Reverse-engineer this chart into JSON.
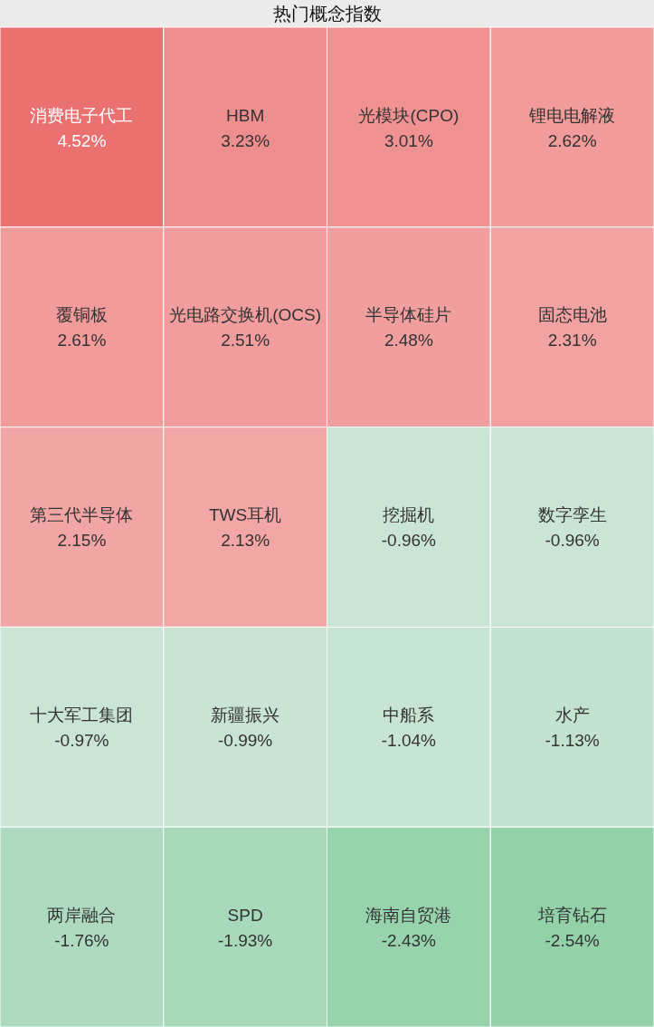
{
  "chart_data": {
    "type": "other",
    "title": "热门概念指数",
    "categories": [
      "消费电子代工",
      "HBM",
      "光模块(CPO)",
      "锂电电解液",
      "覆铜板",
      "光电路交换机(OCS)",
      "半导体硅片",
      "固态电池",
      "第三代半导体",
      "TWS耳机",
      "挖掘机",
      "数字孪生",
      "十大军工集团",
      "新疆振兴",
      "中船系",
      "水产",
      "两岸融合",
      "SPD",
      "海南自贸港",
      "培育钻石"
    ],
    "values": [
      4.52,
      3.23,
      3.01,
      2.62,
      2.61,
      2.51,
      2.48,
      2.31,
      2.15,
      2.13,
      -0.96,
      -0.96,
      -0.97,
      -0.99,
      -1.04,
      -1.13,
      -1.76,
      -1.93,
      -2.43,
      -2.54
    ],
    "value_labels": [
      "4.52%",
      "3.23%",
      "3.01%",
      "2.62%",
      "2.61%",
      "2.51%",
      "2.48%",
      "2.31%",
      "2.15%",
      "2.13%",
      "-0.96%",
      "-0.96%",
      "-0.97%",
      "-0.99%",
      "-1.04%",
      "-1.13%",
      "-1.76%",
      "-1.93%",
      "-2.43%",
      "-2.54%"
    ]
  }
}
